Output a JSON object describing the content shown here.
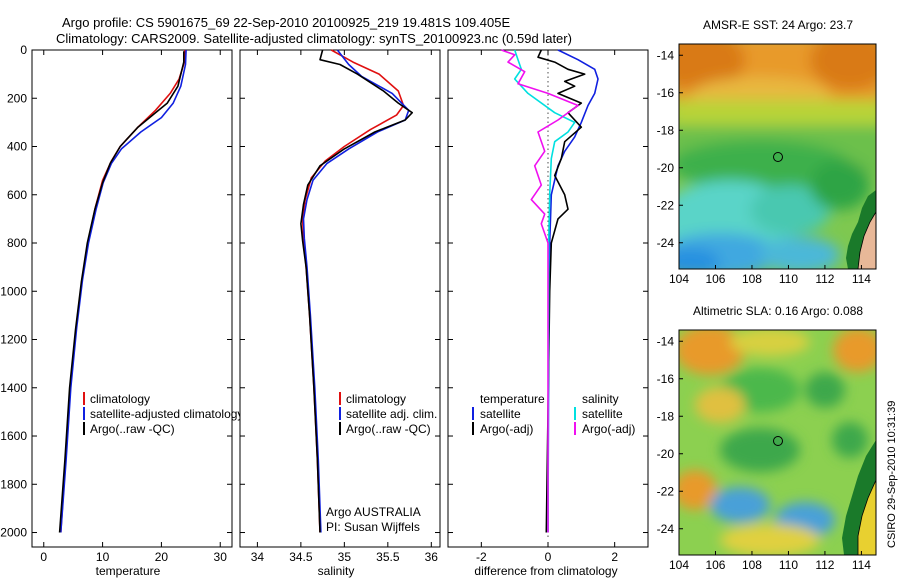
{
  "title_line1": "Argo profile: CS 5901675_69 22-Sep-2010 20100925_219 19.481S 109.405E",
  "title_line2": "Climatology: CARS2009. Satellite-adjusted climatology: synTS_20100923.nc (0.59d later)",
  "stamp": "CSIRO 29-Sep-2010 10:31:39",
  "colors": {
    "climatology": "#e01010",
    "satellite": "#1020e0",
    "argo": "#000000",
    "sat_sal": "#00e0e0",
    "argo_sal": "#f010f0"
  },
  "chart_data": [
    {
      "id": "temp",
      "type": "line",
      "xlabel": "temperature",
      "xlim": [
        -2,
        32
      ],
      "xticks": [
        0,
        10,
        20,
        30
      ],
      "ylim": [
        0,
        2060
      ],
      "yticks": [
        0,
        200,
        400,
        600,
        800,
        1000,
        1200,
        1400,
        1600,
        1800,
        2000
      ],
      "y_inverted": true,
      "legend": [
        "climatology",
        "satellite-adjusted climatology",
        "Argo(..raw -QC)"
      ],
      "series": [
        {
          "name": "climatology",
          "color": "#e01010",
          "points": [
            [
              24.0,
              0
            ],
            [
              23.9,
              50
            ],
            [
              23.0,
              120
            ],
            [
              21.5,
              180
            ],
            [
              19.0,
              250
            ],
            [
              16.0,
              320
            ],
            [
              13.0,
              400
            ],
            [
              11.5,
              460
            ],
            [
              10.0,
              540
            ],
            [
              8.8,
              650
            ],
            [
              7.5,
              800
            ],
            [
              6.5,
              950
            ],
            [
              5.5,
              1150
            ],
            [
              4.5,
              1400
            ],
            [
              3.7,
              1700
            ],
            [
              2.9,
              2000
            ]
          ]
        },
        {
          "name": "satellite-adjusted climatology",
          "color": "#1020e0",
          "points": [
            [
              24.2,
              0
            ],
            [
              24.1,
              60
            ],
            [
              23.3,
              150
            ],
            [
              22.0,
              220
            ],
            [
              20.0,
              280
            ],
            [
              16.5,
              340
            ],
            [
              13.2,
              410
            ],
            [
              11.5,
              470
            ],
            [
              10.1,
              550
            ],
            [
              8.9,
              660
            ],
            [
              7.6,
              800
            ],
            [
              6.6,
              950
            ],
            [
              5.6,
              1150
            ],
            [
              4.6,
              1400
            ],
            [
              3.8,
              1700
            ],
            [
              2.9,
              2000
            ]
          ]
        },
        {
          "name": "Argo(..raw -QC)",
          "color": "#000000",
          "points": [
            [
              23.8,
              5
            ],
            [
              23.8,
              50
            ],
            [
              22.8,
              150
            ],
            [
              21.0,
              220
            ],
            [
              19.0,
              260
            ],
            [
              16.0,
              320
            ],
            [
              13.0,
              400
            ],
            [
              11.3,
              470
            ],
            [
              10.0,
              550
            ],
            [
              8.7,
              660
            ],
            [
              7.4,
              800
            ],
            [
              6.4,
              960
            ],
            [
              5.4,
              1160
            ],
            [
              4.4,
              1400
            ],
            [
              3.6,
              1700
            ],
            [
              2.7,
              2000
            ]
          ]
        }
      ]
    },
    {
      "id": "sal",
      "type": "line",
      "xlabel": "salinity",
      "xlim": [
        33.8,
        36.1
      ],
      "xticks": [
        34,
        34.5,
        35,
        35.5,
        36
      ],
      "ylim": [
        0,
        2060
      ],
      "y_inverted": true,
      "legend": [
        "climatology",
        "satellite adj. clim.",
        "Argo(..raw -QC)"
      ],
      "annotation": [
        "Argo AUSTRALIA",
        "PI: Susan Wijffels"
      ],
      "series": [
        {
          "name": "climatology",
          "color": "#e01010",
          "points": [
            [
              34.85,
              0
            ],
            [
              35.1,
              50
            ],
            [
              35.4,
              100
            ],
            [
              35.62,
              170
            ],
            [
              35.68,
              230
            ],
            [
              35.6,
              270
            ],
            [
              35.3,
              330
            ],
            [
              35.0,
              400
            ],
            [
              34.78,
              460
            ],
            [
              34.62,
              530
            ],
            [
              34.55,
              620
            ],
            [
              34.52,
              700
            ],
            [
              34.53,
              780
            ],
            [
              34.56,
              900
            ],
            [
              34.6,
              1100
            ],
            [
              34.65,
              1400
            ],
            [
              34.69,
              1700
            ],
            [
              34.72,
              2000
            ]
          ]
        },
        {
          "name": "satellite adj. clim.",
          "color": "#1020e0",
          "points": [
            [
              34.92,
              0
            ],
            [
              35.05,
              60
            ],
            [
              35.2,
              110
            ],
            [
              35.55,
              180
            ],
            [
              35.74,
              250
            ],
            [
              35.7,
              290
            ],
            [
              35.38,
              340
            ],
            [
              35.05,
              410
            ],
            [
              34.8,
              470
            ],
            [
              34.64,
              540
            ],
            [
              34.57,
              620
            ],
            [
              34.53,
              700
            ],
            [
              34.54,
              780
            ],
            [
              34.57,
              900
            ],
            [
              34.61,
              1100
            ],
            [
              34.66,
              1400
            ],
            [
              34.7,
              1700
            ],
            [
              34.73,
              2000
            ]
          ]
        },
        {
          "name": "Argo(..raw -QC)",
          "color": "#000000",
          "points": [
            [
              34.75,
              0
            ],
            [
              34.72,
              40
            ],
            [
              34.95,
              60
            ],
            [
              35.15,
              100
            ],
            [
              35.45,
              170
            ],
            [
              35.62,
              220
            ],
            [
              35.78,
              260
            ],
            [
              35.7,
              290
            ],
            [
              35.35,
              340
            ],
            [
              35.0,
              410
            ],
            [
              34.72,
              480
            ],
            [
              34.58,
              560
            ],
            [
              34.53,
              640
            ],
            [
              34.5,
              720
            ],
            [
              34.52,
              790
            ],
            [
              34.56,
              900
            ],
            [
              34.6,
              1100
            ],
            [
              34.65,
              1400
            ],
            [
              34.69,
              1700
            ],
            [
              34.72,
              2000
            ]
          ]
        }
      ]
    },
    {
      "id": "diff",
      "type": "line",
      "xlabel": "difference from climatology",
      "xlim": [
        -3,
        3
      ],
      "xticks": [
        -2,
        0,
        2
      ],
      "ylim": [
        0,
        2060
      ],
      "y_inverted": true,
      "legend_temp_header": "temperature",
      "legend_sal_header": "salinity",
      "legend_temp": [
        "satellite",
        "Argo(-adj)"
      ],
      "legend_sal": [
        "satellite",
        "Argo(-adj)"
      ],
      "series": [
        {
          "name": "temperature satellite",
          "color": "#1020e0",
          "points": [
            [
              0.3,
              0
            ],
            [
              0.9,
              40
            ],
            [
              1.4,
              80
            ],
            [
              1.5,
              120
            ],
            [
              1.4,
              180
            ],
            [
              1.2,
              230
            ],
            [
              1.0,
              300
            ],
            [
              0.8,
              360
            ],
            [
              0.5,
              420
            ],
            [
              0.3,
              480
            ],
            [
              0.1,
              600
            ],
            [
              0.05,
              800
            ],
            [
              0.02,
              1200
            ],
            [
              0.0,
              2000
            ]
          ]
        },
        {
          "name": "temperature Argo(-adj)",
          "color": "#000000",
          "points": [
            [
              -0.2,
              0
            ],
            [
              -0.3,
              30
            ],
            [
              0.2,
              50
            ],
            [
              0.6,
              80
            ],
            [
              1.1,
              100
            ],
            [
              0.5,
              130
            ],
            [
              0.8,
              150
            ],
            [
              0.3,
              180
            ],
            [
              1.0,
              220
            ],
            [
              0.6,
              260
            ],
            [
              1.0,
              320
            ],
            [
              0.5,
              380
            ],
            [
              0.4,
              450
            ],
            [
              0.2,
              520
            ],
            [
              0.5,
              600
            ],
            [
              0.6,
              660
            ],
            [
              0.3,
              700
            ],
            [
              0.1,
              800
            ],
            [
              0.05,
              1000
            ],
            [
              0.0,
              1500
            ],
            [
              -0.05,
              2000
            ]
          ]
        },
        {
          "name": "salinity satellite",
          "color": "#00e0e0",
          "points": [
            [
              -1.0,
              0
            ],
            [
              -0.9,
              40
            ],
            [
              -0.8,
              80
            ],
            [
              -1.0,
              120
            ],
            [
              -0.6,
              180
            ],
            [
              0.2,
              260
            ],
            [
              0.8,
              300
            ],
            [
              0.6,
              340
            ],
            [
              0.2,
              380
            ],
            [
              0.1,
              450
            ],
            [
              0.05,
              600
            ],
            [
              0.02,
              800
            ],
            [
              0.0,
              2000
            ]
          ]
        },
        {
          "name": "salinity Argo(-adj)",
          "color": "#f010f0",
          "points": [
            [
              -1.4,
              0
            ],
            [
              -1.0,
              20
            ],
            [
              -1.2,
              50
            ],
            [
              -0.7,
              90
            ],
            [
              -0.9,
              140
            ],
            [
              0.0,
              180
            ],
            [
              0.9,
              230
            ],
            [
              0.3,
              290
            ],
            [
              -0.3,
              340
            ],
            [
              -0.1,
              420
            ],
            [
              -0.4,
              480
            ],
            [
              -0.2,
              560
            ],
            [
              -0.5,
              620
            ],
            [
              -0.1,
              680
            ],
            [
              -0.2,
              720
            ],
            [
              0.0,
              800
            ],
            [
              0.0,
              2000
            ]
          ]
        }
      ]
    },
    {
      "id": "sst_map",
      "type": "heatmap",
      "title": "AMSR-E SST: 24 Argo: 23.7",
      "xlim": [
        104,
        114.8
      ],
      "ylim": [
        -25.4,
        -13.4
      ],
      "xticks": [
        104,
        106,
        108,
        110,
        112,
        114
      ],
      "yticks": [
        -14,
        -16,
        -18,
        -20,
        -22,
        -24
      ],
      "marker": [
        109.4,
        -19.5
      ]
    },
    {
      "id": "sla_map",
      "type": "heatmap",
      "title": "Altimetric SLA: 0.16 Argo: 0.088",
      "xlim": [
        104,
        114.8
      ],
      "ylim": [
        -25.4,
        -13.4
      ],
      "xticks": [
        104,
        106,
        108,
        110,
        112,
        114
      ],
      "yticks": [
        -14,
        -16,
        -18,
        -20,
        -22,
        -24
      ],
      "marker": [
        109.4,
        -19.5
      ]
    }
  ]
}
